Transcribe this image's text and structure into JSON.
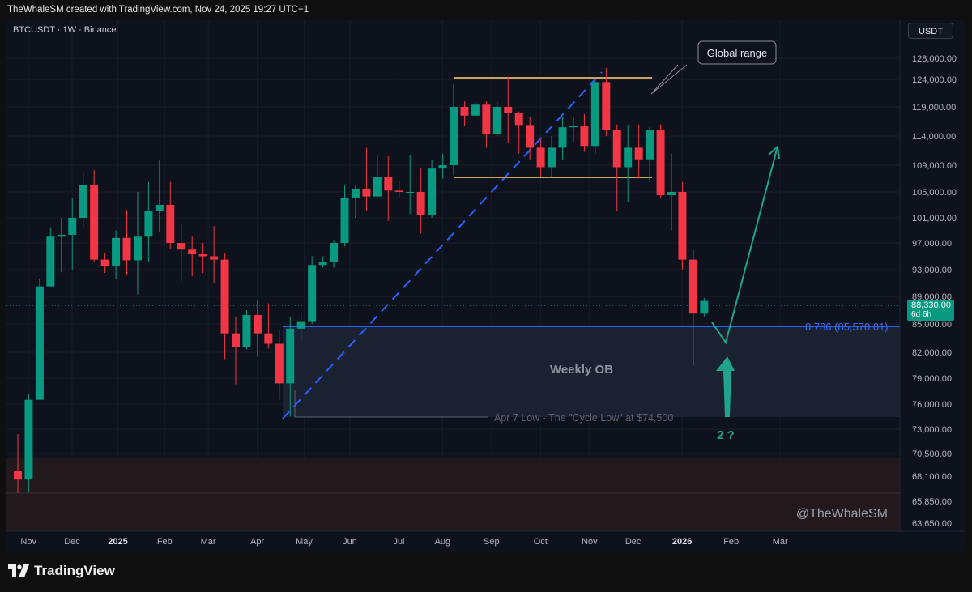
{
  "caption": "TheWhaleSM created with TradingView.com, Nov 24, 2025 19:27 UTC+1",
  "symbol_info": "BTCUSDT · 1W · Binance",
  "currency": "USDT",
  "current_price": {
    "value": "88,330.00",
    "countdown": "6d 6h"
  },
  "watermark": "@TheWhaleSM",
  "footer_brand": "TradingView",
  "colors": {
    "up": "#089981",
    "down": "#f23645",
    "background": "#0d121d",
    "fib": "#2962ff",
    "range": "#c6a560"
  },
  "annotations": {
    "global_range": "Global range",
    "weekly_ob": "Weekly OB",
    "fib_label": "0.786 (85,570.01)",
    "cycle_low": "Apr 7 Low - The \"Cycle Low\" at $74,500",
    "question": "2 ?"
  },
  "chart_data": {
    "type": "candlestick",
    "title": "",
    "xlabel": "",
    "ylabel": "",
    "ylim": [
      62600,
      130000
    ],
    "y_ticks": [
      "128,000.00",
      "124,000.00",
      "119,000.00",
      "114,000.00",
      "109,000.00",
      "105,000.00",
      "101,000.00",
      "97,000.00",
      "93,000.00",
      "89,000.00",
      "85,000.00",
      "82,000.00",
      "79,000.00",
      "76,000.00",
      "73,000.00",
      "70,500.00",
      "68,100.00",
      "65,850.00",
      "63,650.00"
    ],
    "y_tick_values": [
      128000,
      124000,
      119000,
      114000,
      109000,
      105000,
      101000,
      97000,
      93000,
      89000,
      85000,
      82000,
      79000,
      76000,
      73000,
      70500,
      68100,
      65850,
      63650
    ],
    "x_ticks": [
      "Nov",
      "Dec",
      "2025",
      "Feb",
      "Mar",
      "Apr",
      "May",
      "Jun",
      "Jul",
      "Aug",
      "Sep",
      "Oct",
      "Nov",
      "Dec",
      "2026",
      "Feb",
      "Mar"
    ],
    "x_tick_weeks": [
      1.5,
      5.5,
      9.7,
      14,
      18,
      22.5,
      26.8,
      31,
      35.5,
      39.5,
      44,
      48.5,
      53,
      57,
      61.5,
      66,
      70.5
    ],
    "candles": [
      [
        68700,
        72500,
        66600,
        67800
      ],
      [
        67800,
        77200,
        66700,
        76500
      ],
      [
        76500,
        91700,
        76500,
        90500
      ],
      [
        90500,
        99500,
        90500,
        98000
      ],
      [
        98000,
        101000,
        92600,
        98300
      ],
      [
        98300,
        104000,
        93000,
        101000
      ],
      [
        101000,
        108000,
        99500,
        106000
      ],
      [
        106000,
        108300,
        94200,
        94500
      ],
      [
        94500,
        95500,
        92500,
        93500
      ],
      [
        93500,
        99000,
        91600,
        97800
      ],
      [
        97800,
        102200,
        92200,
        94400
      ],
      [
        94400,
        105000,
        89300,
        98000
      ],
      [
        98000,
        106500,
        94200,
        102000
      ],
      [
        102000,
        109800,
        98700,
        103000
      ],
      [
        103000,
        106500,
        96100,
        97000
      ],
      [
        97000,
        100000,
        91300,
        96000
      ],
      [
        96000,
        98000,
        92000,
        95300
      ],
      [
        95300,
        97000,
        92500,
        95000
      ],
      [
        95000,
        99700,
        91000,
        94500
      ],
      [
        94500,
        95500,
        81200,
        84000
      ],
      [
        84000,
        86000,
        78300,
        82600
      ],
      [
        82600,
        87000,
        82300,
        86300
      ],
      [
        86300,
        88500,
        81500,
        84000
      ],
      [
        84000,
        88000,
        82400,
        82900
      ],
      [
        82900,
        84300,
        76500,
        78400
      ],
      [
        78400,
        86000,
        74500,
        84500
      ],
      [
        84500,
        86500,
        83200,
        85400
      ],
      [
        85400,
        95000,
        85000,
        93700
      ],
      [
        93700,
        95000,
        93300,
        94200
      ],
      [
        94200,
        97500,
        93300,
        97000
      ],
      [
        97000,
        106000,
        96500,
        104000
      ],
      [
        104000,
        106000,
        101000,
        105500
      ],
      [
        105500,
        112000,
        102000,
        104300
      ],
      [
        104300,
        110800,
        104000,
        107300
      ],
      [
        107300,
        110500,
        100500,
        105200
      ],
      [
        105200,
        106700,
        104000,
        105000
      ],
      [
        105000,
        110800,
        101600,
        105000
      ],
      [
        105000,
        108500,
        98500,
        101500
      ],
      [
        101500,
        110000,
        101000,
        108500
      ],
      [
        108500,
        111000,
        107000,
        109000
      ],
      [
        109000,
        123200,
        107500,
        119000
      ],
      [
        119000,
        120000,
        115700,
        117500
      ],
      [
        117500,
        119700,
        117500,
        119400
      ],
      [
        119400,
        120000,
        112000,
        114300
      ],
      [
        114300,
        119900,
        114000,
        119000
      ],
      [
        119000,
        124500,
        112800,
        117900
      ],
      [
        117900,
        118200,
        111000,
        115900
      ],
      [
        115900,
        117300,
        110000,
        112000
      ],
      [
        112000,
        113400,
        107300,
        108700
      ],
      [
        108700,
        114000,
        107300,
        112000
      ],
      [
        112000,
        117200,
        110000,
        115500
      ],
      [
        115500,
        117300,
        113000,
        115700
      ],
      [
        115700,
        117800,
        111300,
        112300
      ],
      [
        112300,
        124200,
        111000,
        123500
      ],
      [
        123500,
        126200,
        114000,
        115000
      ],
      [
        115000,
        116000,
        102000,
        108700
      ],
      [
        108700,
        115900,
        103500,
        112000
      ],
      [
        112000,
        116000,
        107000,
        110000
      ],
      [
        110000,
        115500,
        106500,
        115000
      ],
      [
        115000,
        116000,
        104000,
        104500
      ],
      [
        104500,
        111000,
        99000,
        105000
      ],
      [
        105000,
        106500,
        93000,
        94500
      ],
      [
        94500,
        96000,
        80500,
        86500
      ],
      [
        86500,
        88800,
        86000,
        88330
      ]
    ]
  }
}
